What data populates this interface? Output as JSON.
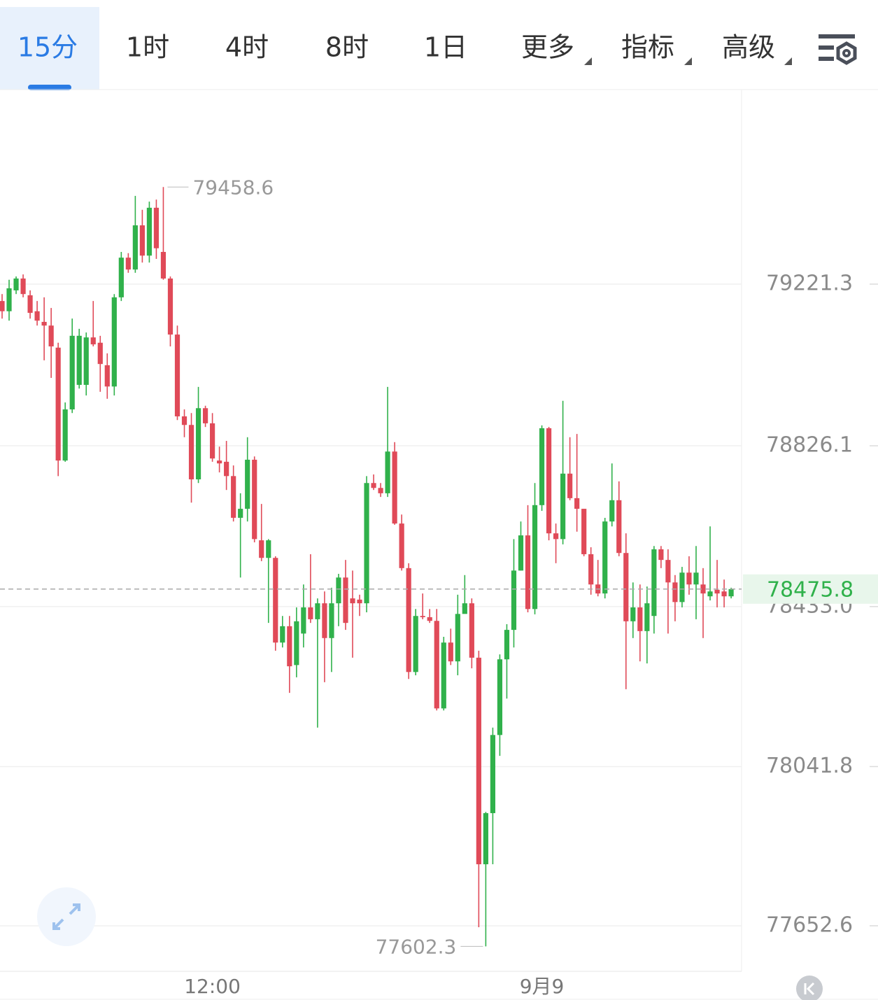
{
  "toolbar": {
    "tabs": [
      "15分",
      "1时",
      "4时",
      "8时",
      "1日",
      "更多",
      "指标",
      "高级"
    ]
  },
  "chart_data": {
    "type": "candlestick",
    "categories": [
      null,
      null,
      null,
      null,
      null,
      null,
      null,
      null,
      null,
      null,
      null,
      null,
      null,
      null,
      null,
      null,
      null,
      null,
      null,
      null,
      null,
      null,
      null,
      null,
      null,
      null,
      null,
      null,
      null,
      null,
      "12:00",
      null,
      null,
      null,
      null,
      null,
      null,
      null,
      null,
      null,
      null,
      null,
      null,
      null,
      null,
      null,
      null,
      null,
      null,
      null,
      null,
      null,
      null,
      null,
      null,
      null,
      null,
      null,
      null,
      null,
      null,
      null,
      null,
      null,
      null,
      null,
      null,
      null,
      null,
      null,
      null,
      null,
      null,
      null,
      null,
      null,
      null,
      "9月9",
      null,
      null,
      null,
      null,
      null,
      null,
      null,
      null,
      null,
      null,
      null,
      null,
      null,
      null,
      null,
      null,
      null,
      null,
      null,
      null,
      null,
      null,
      null,
      null,
      null,
      null,
      null
    ],
    "series": [
      {
        "up_color": "#30b14b",
        "down_color": "#e04a58",
        "open": [
          79180,
          79155,
          79206,
          79235,
          79194,
          79155,
          79129,
          79120,
          79066,
          78790,
          78915,
          78975,
          78975,
          79091,
          79078,
          79023,
          78971,
          79189,
          79286,
          79257,
          79365,
          79291,
          79408,
          79300,
          79235,
          79098,
          78898,
          78877,
          78744,
          78918,
          78881,
          78790,
          78787,
          78752,
          78650,
          78672,
          78792,
          78595,
          78552,
          78552,
          78345,
          78385,
          78290,
          78367,
          78431,
          78402,
          78441,
          78356,
          78441,
          78504,
          78453,
          78450,
          78441,
          78735,
          78723,
          78710,
          78812,
          78636,
          78527,
          78273,
          78410,
          78407,
          78398,
          78184,
          78345,
          78299,
          78415,
          78441,
          78308,
          77803,
          77928,
          78119,
          78304,
          78376,
          78521,
          78607,
          78427,
          78681,
          78869,
          78612,
          78598,
          78758,
          78698,
          78672,
          78561,
          78487,
          78465,
          78641,
          78693,
          78564,
          78397,
          78431,
          78373,
          78410,
          78573,
          78547,
          78492,
          78444,
          78516,
          78487,
          78487,
          78458,
          78474,
          78470,
          78458
        ],
        "high": [
          79197,
          79232,
          79240,
          79245,
          79206,
          79180,
          79189,
          79163,
          79078,
          78932,
          79137,
          79112,
          79103,
          79180,
          79095,
          79052,
          79197,
          79300,
          79297,
          79437,
          79403,
          79423,
          79428,
          79458.6,
          79240,
          79120,
          78915,
          78906,
          78970,
          78924,
          78906,
          78824,
          78838,
          78778,
          78710,
          78847,
          78800,
          78684,
          78598,
          78556,
          78410,
          78410,
          78431,
          78487,
          78561,
          78453,
          78470,
          78479,
          78513,
          78547,
          78521,
          78462,
          78752,
          78756,
          78735,
          78970,
          78835,
          78658,
          78539,
          78427,
          78465,
          78427,
          78427,
          78359,
          78379,
          78462,
          78510,
          78453,
          78325,
          77931,
          78137,
          78316,
          78390,
          78598,
          78641,
          78681,
          78735,
          78876,
          78872,
          78636,
          78936,
          78847,
          78855,
          78672,
          78578,
          78547,
          78650,
          78783,
          78739,
          78612,
          78492,
          78487,
          78482,
          78581,
          78581,
          78573,
          78510,
          78530,
          78556,
          78581,
          78527,
          78629,
          78547,
          78499,
          78479
        ],
        "low": [
          79137,
          79132,
          79197,
          79189,
          79137,
          79120,
          79035,
          78992,
          78752,
          78787,
          78906,
          78966,
          78949,
          79069,
          78958,
          78941,
          78949,
          79180,
          79249,
          79249,
          79274,
          79274,
          79283,
          79232,
          79069,
          78889,
          78847,
          78687,
          78735,
          78872,
          78787,
          78761,
          78718,
          78641,
          78504,
          78641,
          78590,
          78544,
          78393,
          78325,
          78333,
          78222,
          78260,
          78333,
          78393,
          78137,
          78248,
          78273,
          78385,
          78376,
          78308,
          78410,
          78419,
          78718,
          78701,
          78701,
          78633,
          78521,
          78256,
          78265,
          78402,
          78393,
          78179,
          78179,
          78290,
          78265,
          78427,
          78282,
          77649,
          77602.3,
          77803,
          78068,
          78208,
          78333,
          78521,
          78419,
          78414,
          78667,
          78595,
          78539,
          78585,
          78693,
          78616,
          78556,
          78462,
          78458,
          78453,
          78629,
          78556,
          78231,
          78356,
          78299,
          78294,
          78367,
          78527,
          78367,
          78397,
          78431,
          78462,
          78402,
          78356,
          78448,
          78431,
          78431,
          78453
        ],
        "close": [
          79155,
          79211,
          79235,
          79197,
          79151,
          79132,
          79120,
          79069,
          78790,
          78915,
          79095,
          79095,
          79091,
          79074,
          79026,
          78971,
          79189,
          79286,
          79257,
          79365,
          79291,
          79408,
          79309,
          79235,
          79098,
          78898,
          78877,
          78744,
          78918,
          78881,
          78795,
          78783,
          78752,
          78650,
          78672,
          78792,
          78598,
          78552,
          78595,
          78345,
          78385,
          78287,
          78397,
          78431,
          78402,
          78441,
          78356,
          78441,
          78504,
          78393,
          78441,
          78441,
          78735,
          78723,
          78710,
          78812,
          78636,
          78527,
          78273,
          78410,
          78407,
          78398,
          78184,
          78345,
          78299,
          78415,
          78441,
          78308,
          77803,
          77928,
          78119,
          78304,
          78376,
          78521,
          78607,
          78427,
          78681,
          78869,
          78612,
          78598,
          78758,
          78698,
          78672,
          78561,
          78487,
          78465,
          78641,
          78693,
          78564,
          78397,
          78431,
          78373,
          78441,
          78573,
          78547,
          78492,
          78444,
          78516,
          78487,
          78516,
          78465,
          78470,
          78465,
          78458,
          78475.8
        ]
      }
    ],
    "ylim": [
      77541.3,
      79696.9
    ],
    "yticks": [
      79221.3,
      78826.1,
      {
        "value": 78433,
        "label": "78433.0"
      },
      78041.8,
      77652.6
    ],
    "grid": true
  }
}
